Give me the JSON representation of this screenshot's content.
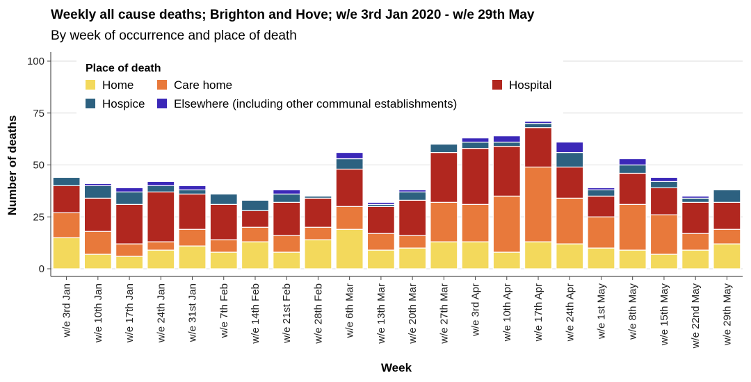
{
  "chart_data": {
    "type": "bar",
    "stacked": true,
    "title": "Weekly all cause deaths; Brighton and Hove; w/e 3rd Jan 2020 - w/e 29th May",
    "subtitle": "By week of occurrence and place of death",
    "xlabel": "Week",
    "ylabel": "Number of deaths",
    "ylim": [
      0,
      100
    ],
    "yticks": [
      0,
      25,
      50,
      75,
      100
    ],
    "grid": true,
    "legend": {
      "title": "Place of death",
      "placement": "top-left"
    },
    "categories": [
      "w/e 3rd Jan",
      "w/e 10th Jan",
      "w/e 17th Jan",
      "w/e 24th Jan",
      "w/e 31st Jan",
      "w/e 7th Feb",
      "w/e 14th Feb",
      "w/e 21st Feb",
      "w/e 28th Feb",
      "w/e 6th Mar",
      "w/e 13th Mar",
      "w/e 20th Mar",
      "w/e 27th Mar",
      "w/e 3rd Apr",
      "w/e 10th Apr",
      "w/e 17th Apr",
      "w/e 24th Apr",
      "w/e 1st May",
      "w/e 8th May",
      "w/e 15th May",
      "w/e 22nd May",
      "w/e 29th May"
    ],
    "series": [
      {
        "name": "Home",
        "color": "#f3d95c",
        "values": [
          15,
          7,
          6,
          9,
          11,
          8,
          13,
          8,
          14,
          19,
          9,
          10,
          13,
          13,
          8,
          13,
          12,
          10,
          9,
          7,
          9,
          12
        ]
      },
      {
        "name": "Care home",
        "color": "#e8793b",
        "values": [
          12,
          11,
          6,
          4,
          8,
          6,
          7,
          8,
          6,
          11,
          8,
          6,
          19,
          18,
          27,
          36,
          22,
          15,
          22,
          19,
          8,
          7
        ]
      },
      {
        "name": "Hospital",
        "color": "#b1271f",
        "values": [
          13,
          16,
          19,
          24,
          17,
          17,
          8,
          16,
          14,
          18,
          13,
          17,
          24,
          27,
          24,
          19,
          15,
          10,
          15,
          13,
          15,
          13
        ]
      },
      {
        "name": "Hospice",
        "color": "#2d6180",
        "values": [
          4,
          6,
          6,
          3,
          2,
          5,
          5,
          4,
          1,
          5,
          1,
          4,
          4,
          3,
          2,
          2,
          7,
          3,
          4,
          3,
          2,
          6
        ]
      },
      {
        "name": "Elsewhere (including other communal establishments)",
        "color": "#3b28b8",
        "values": [
          0,
          1,
          2,
          2,
          2,
          0,
          0,
          2,
          0,
          3,
          1,
          1,
          0,
          2,
          3,
          1,
          5,
          1,
          3,
          2,
          1,
          0
        ]
      }
    ]
  }
}
